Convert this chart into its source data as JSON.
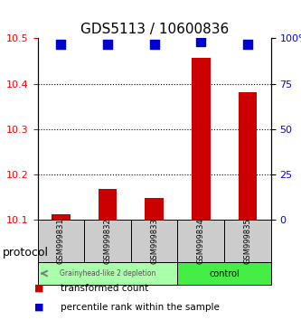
{
  "title": "GDS5113 / 10600836",
  "samples": [
    "GSM999831",
    "GSM999832",
    "GSM999833",
    "GSM999834",
    "GSM999835"
  ],
  "red_values": [
    10.112,
    10.168,
    10.148,
    10.458,
    10.382
  ],
  "blue_values": [
    97,
    97,
    97,
    98,
    97
  ],
  "ylim_left": [
    10.1,
    10.5
  ],
  "ylim_right": [
    0,
    100
  ],
  "yticks_left": [
    10.1,
    10.2,
    10.3,
    10.4,
    10.5
  ],
  "yticks_right": [
    0,
    25,
    50,
    75,
    100
  ],
  "ytick_labels_right": [
    "0",
    "25",
    "50",
    "75",
    "100%"
  ],
  "grid_values": [
    10.2,
    10.3,
    10.4
  ],
  "group1_label": "Grainyhead-like 2 depletion",
  "group2_label": "control",
  "group1_color": "#aaffaa",
  "group2_color": "#44ee44",
  "group1_indices": [
    0,
    1,
    2
  ],
  "group2_indices": [
    3,
    4
  ],
  "bar_color": "#cc0000",
  "dot_color": "#0000cc",
  "bar_base": 10.1,
  "legend_red_label": "transformed count",
  "legend_blue_label": "percentile rank within the sample",
  "protocol_label": "protocol",
  "xlabel_area_height": 0.22,
  "sample_box_color": "#cccccc",
  "dot_size": 50
}
